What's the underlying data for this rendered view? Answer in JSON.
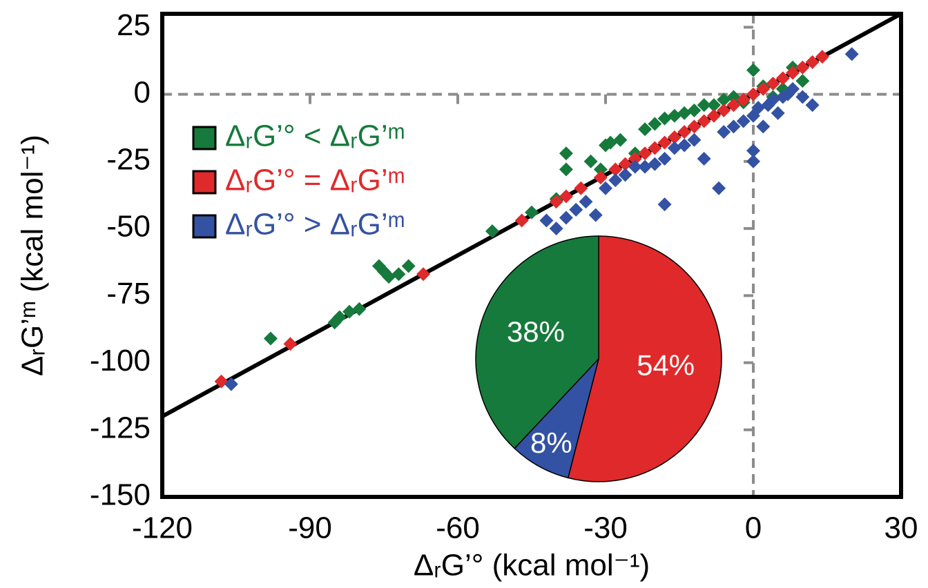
{
  "chart_data": [
    {
      "type": "scatter",
      "x_label": "ΔᵣG’° (kcal mol⁻¹)",
      "y_label": "ΔᵣG’ᵐ (kcal mol⁻¹)",
      "xlim": [
        -120,
        30
      ],
      "ylim": [
        -150,
        30
      ],
      "xticks": [
        -120,
        -90,
        -60,
        -30,
        0,
        30
      ],
      "yticks": [
        -150,
        -125,
        -100,
        -75,
        -50,
        -25,
        0,
        25
      ],
      "identity_line": true,
      "zero_lines": true,
      "legend": "upper left",
      "series": [
        {
          "name": "ΔᵣG’° < ΔᵣG’ᵐ",
          "color": "#167a3c",
          "x": [
            -98,
            -85,
            -84,
            -82,
            -80,
            -76,
            -75,
            -74,
            -72,
            -70,
            -53,
            -45,
            -40,
            -38,
            -38,
            -33,
            -31,
            -30,
            -29,
            -27,
            -24,
            -22,
            -20,
            -18,
            -16,
            -14,
            -12,
            -10,
            -8,
            -6,
            -4,
            -2,
            0,
            2,
            4,
            6,
            8,
            10
          ],
          "y": [
            -91,
            -85,
            -83,
            -81,
            -80,
            -64,
            -66,
            -68,
            -67,
            -64,
            -51,
            -44,
            -39,
            -22,
            -28,
            -25,
            -28,
            -19,
            -18,
            -17,
            -22,
            -13,
            -11,
            -9,
            -8,
            -7,
            -6,
            -4,
            -4,
            -2,
            -1,
            -3,
            9,
            3,
            -1,
            2,
            10,
            5
          ]
        },
        {
          "name": "ΔᵣG’° = ΔᵣG’ᵐ",
          "color": "#e0292b",
          "x": [
            -108,
            -94,
            -67,
            -47,
            -40,
            -38,
            -35,
            -31,
            -28,
            -26,
            -24,
            -22,
            -20,
            -18,
            -16,
            -14,
            -12,
            -10,
            -8,
            -6,
            -4,
            -2,
            0,
            2,
            4,
            6,
            8,
            10,
            12,
            14
          ],
          "y": [
            -107,
            -93,
            -67,
            -47,
            -40,
            -38,
            -35,
            -31,
            -28,
            -26,
            -24,
            -22,
            -20,
            -18,
            -16,
            -14,
            -12,
            -10,
            -8,
            -6,
            -4,
            -2,
            0,
            2,
            4,
            6,
            8,
            10,
            12,
            14
          ]
        },
        {
          "name": "ΔᵣG’° > ΔᵣG’ᵐ",
          "color": "#3452a3",
          "x": [
            -106,
            -42,
            -40,
            -38,
            -36,
            -34,
            -32,
            -30,
            -28,
            -26,
            -24,
            -22,
            -20,
            -18,
            -18,
            -16,
            -14,
            -12,
            -10,
            -7,
            -6,
            -4,
            -2,
            0,
            0,
            0,
            1,
            2,
            3,
            4,
            5,
            6,
            7,
            8,
            10,
            12,
            20
          ],
          "y": [
            -108,
            -47,
            -50,
            -46,
            -43,
            -40,
            -45,
            -35,
            -32,
            -30,
            -27,
            -27,
            -26,
            -24,
            -41,
            -20,
            -19,
            -17,
            -24,
            -35,
            -14,
            -12,
            -10,
            -8,
            -25,
            -21,
            -5,
            -12,
            -4,
            -2,
            -7,
            -1,
            0,
            2,
            -1,
            -4,
            15
          ]
        }
      ]
    },
    {
      "type": "pie",
      "values": [
        54,
        8,
        38
      ],
      "value_labels": [
        "54%",
        "8%",
        "38%"
      ],
      "colors": [
        "#e0292b",
        "#3452a3",
        "#167a3c"
      ]
    }
  ]
}
